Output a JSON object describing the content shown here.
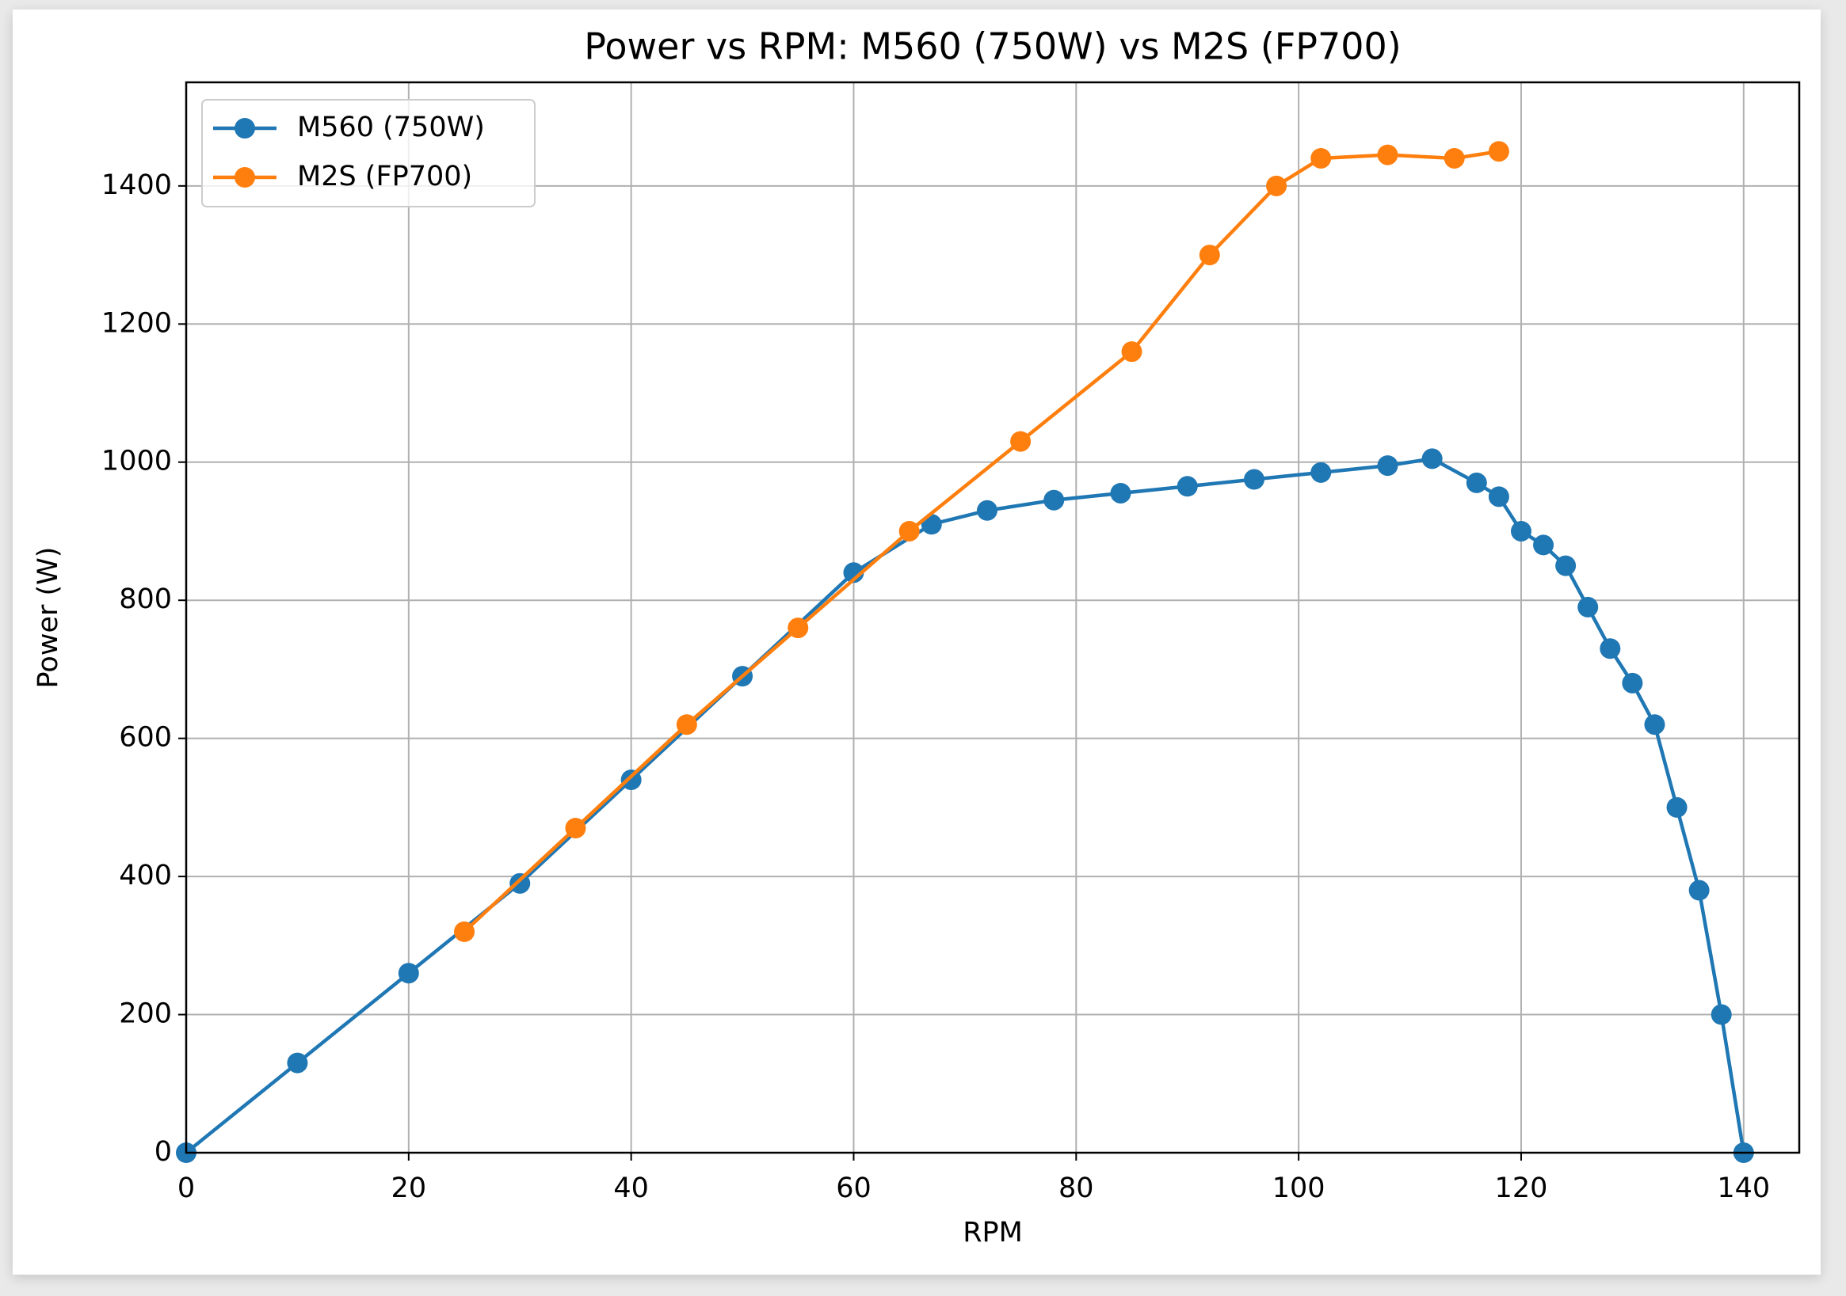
{
  "chart_data": {
    "type": "line",
    "title": "Power vs RPM: M560 (750W) vs M2S (FP700)",
    "xlabel": "RPM",
    "ylabel": "Power (W)",
    "xlim": [
      0,
      145
    ],
    "ylim": [
      0,
      1550
    ],
    "xticks": [
      0,
      20,
      40,
      60,
      80,
      100,
      120,
      140
    ],
    "yticks": [
      0,
      200,
      400,
      600,
      800,
      1000,
      1200,
      1400
    ],
    "grid": true,
    "legend": "upper left",
    "series": [
      {
        "name": "M560 (750W)",
        "color": "#1f77b4",
        "x": [
          0,
          10,
          20,
          30,
          40,
          50,
          60,
          67,
          72,
          78,
          84,
          90,
          96,
          102,
          108,
          112,
          116,
          118,
          120,
          122,
          124,
          126,
          128,
          130,
          132,
          134,
          136,
          138,
          140
        ],
        "values": [
          0,
          130,
          260,
          390,
          540,
          690,
          840,
          910,
          930,
          945,
          955,
          965,
          975,
          985,
          995,
          1005,
          970,
          950,
          900,
          880,
          850,
          790,
          730,
          680,
          620,
          500,
          380,
          200,
          0
        ]
      },
      {
        "name": "M2S (FP700)",
        "color": "#ff7f0e",
        "x": [
          25,
          35,
          45,
          55,
          65,
          75,
          85,
          92,
          98,
          102,
          108,
          114,
          118
        ],
        "values": [
          320,
          470,
          620,
          760,
          900,
          1030,
          1160,
          1300,
          1400,
          1440,
          1445,
          1440,
          1450
        ]
      }
    ]
  }
}
